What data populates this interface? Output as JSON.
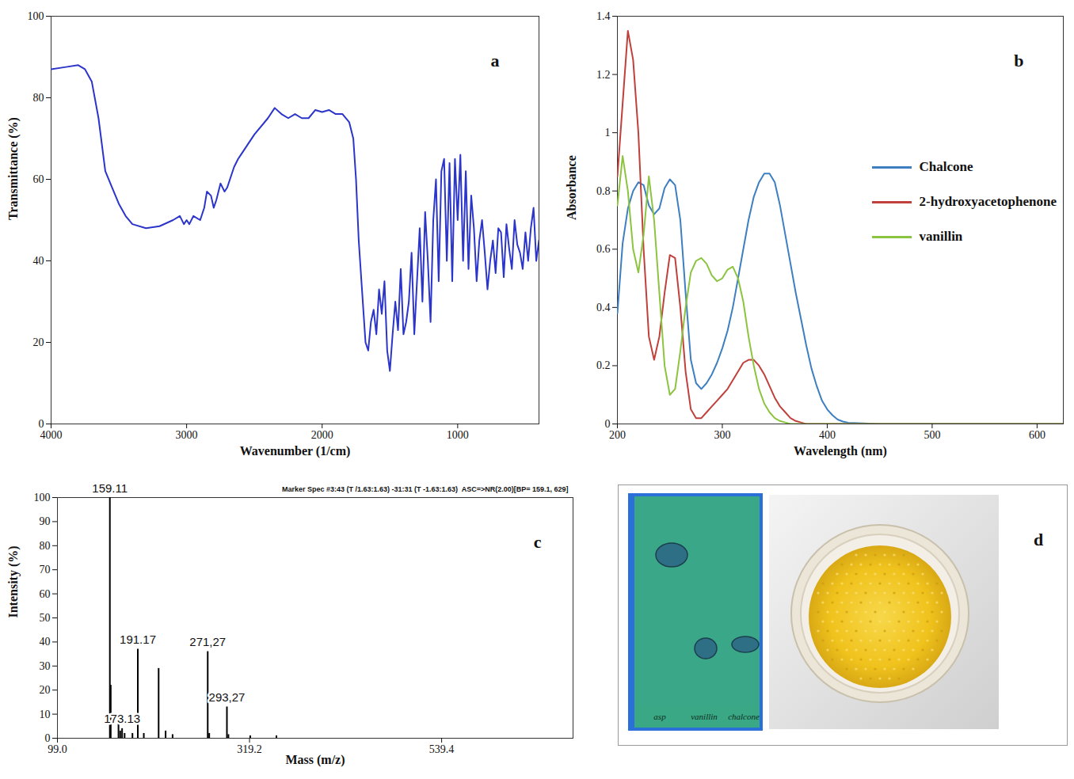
{
  "chart_data": [
    {
      "panel": "a",
      "type": "line",
      "x_label": "Wavenumber (1/cm)",
      "y_label": "Transmittance (%)",
      "xlim": [
        4000,
        400
      ],
      "xticks": [
        4000,
        3000,
        2000,
        1000
      ],
      "ylim": [
        0,
        100
      ],
      "yticks": [
        0,
        20,
        40,
        60,
        80,
        100
      ],
      "grid": false,
      "series": [
        {
          "color": "#2b35c9",
          "x": [
            4000,
            3900,
            3800,
            3750,
            3700,
            3650,
            3600,
            3550,
            3500,
            3450,
            3400,
            3300,
            3200,
            3100,
            3050,
            3020,
            3000,
            2980,
            2950,
            2900,
            2870,
            2850,
            2820,
            2800,
            2780,
            2750,
            2720,
            2700,
            2650,
            2620,
            2600,
            2500,
            2400,
            2350,
            2300,
            2250,
            2200,
            2150,
            2100,
            2050,
            2000,
            1950,
            1900,
            1850,
            1800,
            1770,
            1750,
            1730,
            1700,
            1680,
            1660,
            1640,
            1620,
            1600,
            1580,
            1560,
            1540,
            1520,
            1500,
            1480,
            1460,
            1440,
            1420,
            1400,
            1380,
            1360,
            1340,
            1320,
            1300,
            1280,
            1260,
            1240,
            1220,
            1200,
            1180,
            1160,
            1140,
            1120,
            1100,
            1080,
            1060,
            1040,
            1020,
            1000,
            980,
            960,
            940,
            920,
            900,
            880,
            860,
            840,
            820,
            800,
            780,
            760,
            740,
            720,
            700,
            680,
            660,
            640,
            620,
            600,
            580,
            560,
            540,
            520,
            500,
            480,
            460,
            440,
            420,
            400
          ],
          "values": [
            87,
            87.5,
            88,
            87,
            84,
            75,
            62,
            58,
            54,
            51,
            49,
            48,
            48.5,
            50,
            51,
            49,
            50,
            49,
            51,
            50,
            53,
            57,
            56,
            53,
            55,
            59,
            57,
            58,
            63,
            65,
            66,
            71,
            75,
            77.5,
            76,
            75,
            76,
            75,
            75,
            77,
            76.5,
            77,
            76,
            76,
            74,
            70,
            60,
            45,
            30,
            20,
            18,
            25,
            28,
            22,
            33,
            27,
            35,
            18,
            13,
            22,
            30,
            23,
            38,
            22,
            25,
            30,
            42,
            22,
            35,
            48,
            30,
            52,
            40,
            25,
            50,
            60,
            35,
            62,
            65,
            40,
            64,
            35,
            65,
            50,
            66,
            40,
            62,
            38,
            56,
            48,
            35,
            45,
            50,
            42,
            33,
            40,
            45,
            37,
            48,
            47,
            36,
            49,
            43,
            38,
            50,
            44,
            42,
            38,
            47,
            40,
            48,
            53,
            40,
            45
          ]
        }
      ]
    },
    {
      "panel": "b",
      "type": "line",
      "x_label": "Wavelength (nm)",
      "y_label": "Absorbance",
      "xlim": [
        200,
        625
      ],
      "xticks": [
        200,
        300,
        400,
        500,
        600
      ],
      "ylim": [
        0,
        1.4
      ],
      "yticks": [
        0,
        0.2,
        0.4,
        0.6,
        0.8,
        1,
        1.2,
        1.4
      ],
      "grid": false,
      "legend": "right",
      "x": [
        200,
        205,
        210,
        215,
        220,
        225,
        230,
        235,
        240,
        245,
        250,
        255,
        260,
        265,
        270,
        275,
        280,
        285,
        290,
        295,
        300,
        305,
        310,
        315,
        320,
        325,
        330,
        335,
        340,
        345,
        350,
        355,
        360,
        365,
        370,
        375,
        380,
        385,
        390,
        395,
        400,
        405,
        410,
        415,
        420,
        450,
        500,
        550,
        600,
        625
      ],
      "series": [
        {
          "name": "Chalcone",
          "color": "#3d7fc1",
          "values": [
            0.38,
            0.62,
            0.74,
            0.8,
            0.83,
            0.82,
            0.75,
            0.72,
            0.74,
            0.81,
            0.84,
            0.82,
            0.7,
            0.45,
            0.22,
            0.14,
            0.12,
            0.14,
            0.17,
            0.21,
            0.26,
            0.32,
            0.4,
            0.5,
            0.6,
            0.7,
            0.78,
            0.83,
            0.86,
            0.86,
            0.83,
            0.75,
            0.65,
            0.55,
            0.45,
            0.36,
            0.27,
            0.19,
            0.13,
            0.08,
            0.05,
            0.03,
            0.015,
            0.008,
            0.004,
            0,
            0,
            0,
            0,
            0
          ]
        },
        {
          "name": "2-hydroxyacetophenone",
          "color": "#c0403b",
          "values": [
            0.85,
            1.1,
            1.35,
            1.25,
            1.0,
            0.6,
            0.3,
            0.22,
            0.3,
            0.45,
            0.58,
            0.57,
            0.4,
            0.18,
            0.05,
            0.02,
            0.02,
            0.04,
            0.06,
            0.08,
            0.1,
            0.12,
            0.15,
            0.18,
            0.21,
            0.22,
            0.22,
            0.2,
            0.17,
            0.13,
            0.09,
            0.06,
            0.04,
            0.02,
            0.01,
            0.005,
            0,
            0,
            0,
            0,
            0,
            0,
            0,
            0,
            0,
            0,
            0,
            0,
            0,
            0
          ]
        },
        {
          "name": "vanillin",
          "color": "#8cc43f",
          "values": [
            0.75,
            0.92,
            0.8,
            0.6,
            0.52,
            0.65,
            0.85,
            0.7,
            0.45,
            0.2,
            0.1,
            0.12,
            0.25,
            0.4,
            0.52,
            0.56,
            0.57,
            0.55,
            0.51,
            0.49,
            0.5,
            0.53,
            0.54,
            0.5,
            0.42,
            0.3,
            0.2,
            0.12,
            0.07,
            0.04,
            0.02,
            0.01,
            0.005,
            0,
            0,
            0,
            0,
            0,
            0,
            0,
            0,
            0,
            0,
            0,
            0,
            0,
            0,
            0,
            0,
            0
          ]
        }
      ]
    },
    {
      "panel": "c",
      "type": "bar",
      "title": "Marker Spec #3:43 (T /1.63:1.63) -31:31 (T -1.63:1.63)  ASC=>NR(2.00)[BP= 159.1, 629]",
      "x_label": "Mass (m/z)",
      "y_label": "Intensity (%)",
      "xlim": [
        99.0,
        690
      ],
      "xticks": [
        {
          "value": 99.0,
          "label": "99.0"
        },
        {
          "value": 319.2,
          "label": "319.2"
        },
        {
          "value": 539.4,
          "label": "539.4"
        }
      ],
      "ylim": [
        0,
        100
      ],
      "yticks": [
        0,
        10,
        20,
        30,
        40,
        50,
        60,
        70,
        80,
        90,
        100
      ],
      "grid": false,
      "color": "#000000",
      "x": [
        159.11,
        160.1,
        169,
        171,
        173.13,
        176,
        185,
        191.17,
        198,
        215,
        223,
        231,
        271.27,
        273,
        293.27,
        295,
        320,
        350
      ],
      "values": [
        100,
        22,
        6,
        3,
        4,
        2,
        2,
        37,
        2,
        29,
        3,
        1.5,
        36,
        2,
        13,
        1.5,
        1,
        1
      ],
      "peak_labels": [
        {
          "x": 159.11,
          "label": "159.11"
        },
        {
          "x": 173.13,
          "label": "173.13"
        },
        {
          "x": 191.17,
          "label": "191.17"
        },
        {
          "x": 271.27,
          "label": "271,27"
        },
        {
          "x": 293.27,
          "label": "293,27"
        }
      ]
    },
    {
      "panel": "d",
      "type": "image",
      "labels": [
        "asp",
        "vanillin",
        "chalcone"
      ]
    }
  ]
}
